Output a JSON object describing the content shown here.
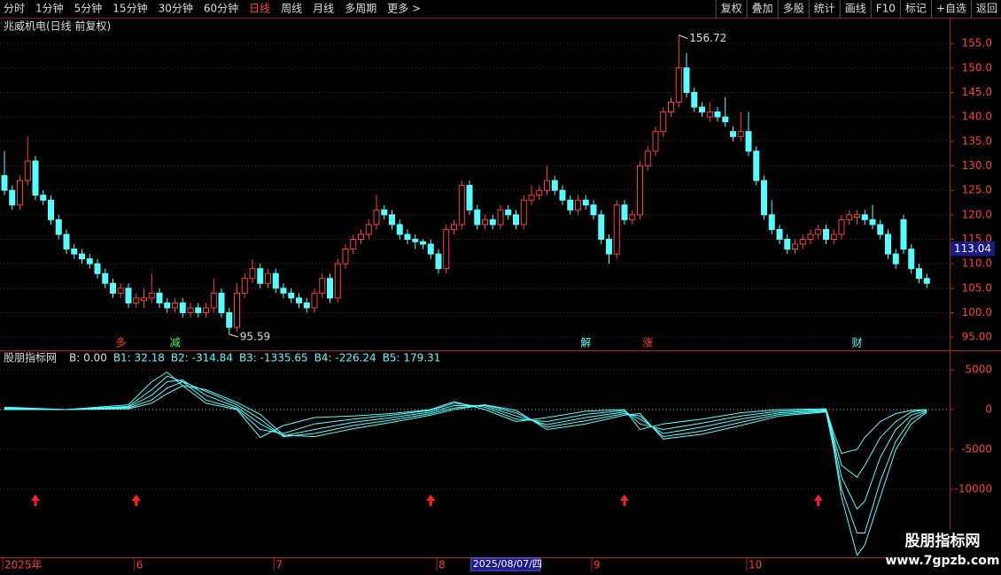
{
  "toolbar": {
    "left": [
      "分时",
      "1分钟",
      "5分钟",
      "15分钟",
      "30分钟",
      "60分钟",
      "日线",
      "周线",
      "月线",
      "多周期",
      "更多 >"
    ],
    "right": [
      "复权",
      "叠加",
      "多股",
      "统计",
      "画线",
      "F10",
      "标记",
      "+自选",
      "返回"
    ]
  },
  "chart_data": [
    {
      "type": "candlestick",
      "title": "兆威机电(日线 前复权)",
      "up_color": "#ff3c3c",
      "down_color": "#54ffff",
      "ylim": [
        92.5,
        159.9
      ],
      "yticks": [
        {
          "value": 95,
          "label": "95.00"
        },
        {
          "value": 100,
          "label": "100.0"
        },
        {
          "value": 105,
          "label": "105.0"
        },
        {
          "value": 110,
          "label": "110.0"
        },
        {
          "value": 115,
          "label": "115.0"
        },
        {
          "value": 120,
          "label": "120.0"
        },
        {
          "value": 125,
          "label": "125.0"
        },
        {
          "value": 130,
          "label": "130.0"
        },
        {
          "value": 135,
          "label": "135.0"
        },
        {
          "value": 140,
          "label": "140.0"
        },
        {
          "value": 145,
          "label": "145.0"
        },
        {
          "value": 150,
          "label": "150.0"
        },
        {
          "value": 155,
          "label": "155.0"
        }
      ],
      "grid": true,
      "ohlc": [
        [
          128,
          133,
          124,
          125
        ],
        [
          125,
          126,
          121,
          122
        ],
        [
          122,
          128,
          121,
          127
        ],
        [
          127,
          136,
          126,
          131
        ],
        [
          131,
          132,
          123,
          124
        ],
        [
          124,
          125,
          122,
          123
        ],
        [
          123,
          124,
          118,
          119
        ],
        [
          119,
          120,
          115,
          116
        ],
        [
          116,
          117,
          112,
          113
        ],
        [
          113,
          114,
          111,
          112
        ],
        [
          112,
          113,
          110,
          111
        ],
        [
          111,
          112,
          109,
          110
        ],
        [
          110,
          111,
          107,
          108
        ],
        [
          108,
          109,
          105,
          106
        ],
        [
          106,
          107,
          103,
          104
        ],
        [
          104,
          106,
          103,
          105
        ],
        [
          105,
          106,
          101,
          102
        ],
        [
          102,
          104,
          101,
          103
        ],
        [
          102.5,
          105,
          101,
          103
        ],
        [
          103,
          108,
          102,
          104
        ],
        [
          104,
          105,
          101,
          102
        ],
        [
          102,
          103,
          100,
          101
        ],
        [
          101,
          103,
          100,
          102
        ],
        [
          102,
          103,
          99,
          100
        ],
        [
          100,
          102,
          99,
          101
        ],
        [
          101,
          102,
          99,
          100
        ],
        [
          100,
          102,
          99,
          101
        ],
        [
          101,
          107,
          100,
          104
        ],
        [
          104,
          105,
          99,
          100
        ],
        [
          100,
          101,
          95.59,
          97
        ],
        [
          97,
          106,
          96,
          104
        ],
        [
          104,
          108,
          103,
          107
        ],
        [
          107,
          111,
          106,
          109
        ],
        [
          109,
          110,
          105,
          106
        ],
        [
          106,
          109,
          105,
          108
        ],
        [
          108,
          109,
          104,
          105
        ],
        [
          105,
          106,
          103,
          104
        ],
        [
          104,
          105,
          102,
          103
        ],
        [
          103,
          104,
          101,
          102
        ],
        [
          102,
          103,
          100,
          101
        ],
        [
          101,
          105,
          100,
          104
        ],
        [
          104,
          108,
          103,
          107
        ],
        [
          107,
          108,
          102,
          103
        ],
        [
          103,
          111,
          102,
          110
        ],
        [
          110,
          114,
          109,
          113
        ],
        [
          113,
          116,
          112,
          115
        ],
        [
          115,
          117,
          114,
          116
        ],
        [
          116,
          119,
          115,
          118
        ],
        [
          118,
          124,
          117,
          121
        ],
        [
          121,
          122,
          119,
          120
        ],
        [
          120,
          121,
          117,
          118
        ],
        [
          118,
          119,
          115,
          116
        ],
        [
          116,
          117,
          114,
          115
        ],
        [
          115,
          116,
          113,
          114.5
        ],
        [
          114.5,
          115,
          113,
          114
        ],
        [
          114,
          115,
          111,
          112
        ],
        [
          112,
          113,
          108,
          109
        ],
        [
          109,
          118,
          108,
          117
        ],
        [
          117,
          119,
          116,
          118
        ],
        [
          118,
          127,
          117,
          126
        ],
        [
          126,
          127,
          120,
          121
        ],
        [
          121,
          122,
          117,
          118
        ],
        [
          118,
          120,
          117,
          119
        ],
        [
          119,
          120,
          117,
          118
        ],
        [
          118,
          122,
          117,
          121
        ],
        [
          121,
          122,
          119,
          120
        ],
        [
          120,
          121,
          117,
          118
        ],
        [
          118,
          124,
          117,
          123
        ],
        [
          123,
          126,
          122,
          124
        ],
        [
          124,
          126,
          123,
          125
        ],
        [
          125,
          130,
          124,
          127
        ],
        [
          127,
          128,
          124,
          125
        ],
        [
          125,
          126,
          122,
          123
        ],
        [
          123,
          124,
          120,
          121
        ],
        [
          121,
          124,
          120,
          123
        ],
        [
          123,
          124,
          121,
          122
        ],
        [
          122,
          123,
          119,
          120
        ],
        [
          120,
          121,
          114,
          115
        ],
        [
          115,
          116,
          110,
          112
        ],
        [
          112,
          123,
          111,
          122
        ],
        [
          122,
          123,
          118,
          119
        ],
        [
          119,
          121,
          118,
          120
        ],
        [
          120,
          131,
          119,
          130
        ],
        [
          130,
          134,
          129,
          133
        ],
        [
          133,
          138,
          132,
          137
        ],
        [
          137,
          142,
          136,
          141
        ],
        [
          141,
          144,
          140,
          143
        ],
        [
          143,
          156.72,
          142,
          150
        ],
        [
          150,
          153,
          144,
          145
        ],
        [
          145,
          146,
          141,
          142
        ],
        [
          142,
          143,
          140,
          141
        ],
        [
          140,
          143,
          139,
          141
        ],
        [
          141,
          142,
          139,
          140
        ],
        [
          140,
          144,
          138,
          139
        ],
        [
          137,
          138,
          135,
          136
        ],
        [
          136,
          141,
          135,
          137
        ],
        [
          137,
          141,
          132,
          133
        ],
        [
          133,
          134,
          126,
          127
        ],
        [
          127,
          128,
          119,
          120
        ],
        [
          120,
          123,
          116,
          117
        ],
        [
          117,
          118,
          114,
          115
        ],
        [
          115,
          116,
          112,
          113
        ],
        [
          113,
          115,
          112,
          114
        ],
        [
          114,
          116,
          113,
          115
        ],
        [
          115,
          117,
          114,
          116
        ],
        [
          116,
          118,
          115,
          117
        ],
        [
          117,
          118,
          114,
          115
        ],
        [
          115,
          117,
          114,
          116
        ],
        [
          116,
          120,
          115,
          119
        ],
        [
          119,
          121,
          118,
          120
        ],
        [
          119.5,
          121,
          118,
          120
        ],
        [
          120,
          121,
          118,
          119
        ],
        [
          119,
          122,
          117,
          118
        ],
        [
          118,
          119,
          115,
          116
        ],
        [
          116,
          117,
          111,
          112
        ],
        [
          112,
          113,
          109,
          110
        ],
        [
          119,
          120,
          112,
          113
        ],
        [
          113,
          114,
          108,
          109
        ],
        [
          109,
          110,
          106,
          107
        ],
        [
          107,
          108,
          105,
          106
        ]
      ],
      "high_label": {
        "index": 87,
        "value": 156.72,
        "label": "156.72"
      },
      "low_label": {
        "index": 29,
        "value": 95.59,
        "label": "95.59"
      },
      "last_price": {
        "value": 113.04,
        "label": "113.04"
      },
      "markers": [
        {
          "index": 15,
          "text": "多",
          "color": "#ff3c3c"
        },
        {
          "index": 22,
          "text": "减",
          "color": "#40ff40"
        },
        {
          "index": 75,
          "text": "解",
          "color": "#54ffff"
        },
        {
          "index": 83,
          "text": "涨",
          "color": "#ff3c3c"
        },
        {
          "index": 110,
          "text": "财",
          "color": "#54ffff"
        }
      ]
    },
    {
      "type": "line",
      "title": "股朋指标网",
      "legend": [
        "B: 0.00",
        "B1: 32.18",
        "B2: -314.84",
        "B3: -1335.65",
        "B4: -226.24",
        "B5: 179.31"
      ],
      "ylim": [
        -18556,
        7222
      ],
      "yticks": [
        5000,
        0,
        -5000,
        -10000
      ],
      "x": [
        0,
        8,
        16,
        19,
        21,
        23,
        26,
        30,
        33,
        36,
        40,
        45,
        50,
        55,
        58,
        62,
        66,
        70,
        75,
        80,
        82,
        85,
        90,
        95,
        100,
        106,
        107,
        108,
        110,
        111,
        113,
        115,
        117,
        119
      ],
      "series": [
        {
          "name": "B1",
          "color": "#54ffff",
          "values": [
            300,
            0,
            600,
            3500,
            4700,
            3000,
            800,
            0,
            -3500,
            -2000,
            -1000,
            -800,
            -500,
            0,
            1000,
            0,
            -1500,
            -1000,
            -200,
            0,
            -2500,
            -1800,
            -1200,
            -400,
            0,
            100,
            -3000,
            -5500,
            -5000,
            -3500,
            -1500,
            -500,
            -100,
            0
          ]
        },
        {
          "name": "B2",
          "color": "#54ffff",
          "values": [
            200,
            0,
            400,
            2500,
            4200,
            3500,
            1200,
            100,
            -2500,
            -3000,
            -1800,
            -1200,
            -700,
            -100,
            800,
            300,
            -1200,
            -1500,
            -600,
            -100,
            -1800,
            -2500,
            -1700,
            -800,
            -200,
            0,
            -3500,
            -7000,
            -8500,
            -7000,
            -3500,
            -1500,
            -300,
            0
          ]
        },
        {
          "name": "B3",
          "color": "#54ffff",
          "values": [
            100,
            0,
            300,
            1800,
            3500,
            3700,
            1800,
            300,
            -1800,
            -3300,
            -2500,
            -1600,
            -1000,
            -300,
            500,
            500,
            -800,
            -1900,
            -1000,
            -300,
            -1200,
            -3000,
            -2200,
            -1200,
            -400,
            -100,
            -4000,
            -8500,
            -12500,
            -11500,
            -6000,
            -2500,
            -700,
            -100
          ]
        },
        {
          "name": "B4",
          "color": "#54ffff",
          "values": [
            0,
            0,
            200,
            1200,
            2700,
            3500,
            2300,
            600,
            -1200,
            -3400,
            -3000,
            -2000,
            -1300,
            -500,
            200,
            600,
            -400,
            -2200,
            -1400,
            -500,
            -800,
            -3400,
            -2700,
            -1600,
            -600,
            -200,
            -4500,
            -10000,
            -15500,
            -15500,
            -9000,
            -4000,
            -1200,
            -200
          ]
        },
        {
          "name": "B5",
          "color": "#54ffff",
          "values": [
            0,
            0,
            100,
            800,
            2000,
            3000,
            2500,
            900,
            -600,
            -3200,
            -3400,
            -2400,
            -1600,
            -700,
            0,
            600,
            -100,
            -2500,
            -1800,
            -700,
            -500,
            -3700,
            -3100,
            -2000,
            -800,
            -300,
            -5000,
            -11000,
            -18300,
            -17000,
            -11000,
            -5000,
            -1800,
            -300
          ]
        }
      ],
      "signals": [
        4,
        17,
        55,
        80,
        105
      ]
    }
  ],
  "date_axis": [
    {
      "value": 0,
      "label": "2025年"
    },
    {
      "value": 17,
      "label": "6"
    },
    {
      "value": 35,
      "label": "7"
    },
    {
      "value": 56,
      "label": "8"
    },
    {
      "value": 76,
      "label": "9"
    },
    {
      "value": 96,
      "label": "10"
    }
  ],
  "cursor_date": {
    "value": 61,
    "label": "2025/08/07/四"
  },
  "watermark": {
    "title": "股朋指标网",
    "url": "www.7gpzb.com"
  }
}
